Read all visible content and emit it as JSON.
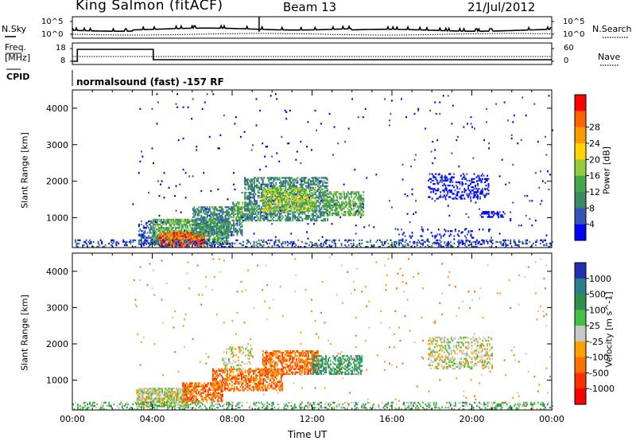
{
  "header": {
    "station": "King Salmon (fitACF)",
    "beam": "Beam 13",
    "date": "21/Jul/2012"
  },
  "noise_panel": {
    "left_label": "N.Sky",
    "right_label": "N.Search",
    "tick_top": "10^5",
    "tick_bottom": "10^0",
    "colors": {
      "line": "#000000"
    }
  },
  "freq_panel": {
    "left_label_1": "Freq.",
    "left_label_2": "[MHz]",
    "right_label": "Nave",
    "left_ticks": [
      "18",
      "8"
    ],
    "right_ticks": [
      "60",
      "0"
    ]
  },
  "cpid": {
    "label": "CPID",
    "text": "normalsound (fast) -157 RF"
  },
  "chart_data": [
    {
      "type": "heatmap",
      "name": "power",
      "ylabel": "Slant Range [km]",
      "xlabel": "",
      "ylim": [
        180,
        4500
      ],
      "yticks": [
        "1000",
        "2000",
        "3000",
        "4000"
      ],
      "xlim_hours": [
        0,
        24
      ],
      "colorbar": {
        "label": "Power [dB]",
        "ticks": [
          "4",
          "8",
          "12",
          "16",
          "20",
          "24",
          "28"
        ],
        "colors": [
          "#0000ff",
          "#3355bb",
          "#3d8a63",
          "#44a84a",
          "#96cc3a",
          "#ffd600",
          "#ff9b00",
          "#ff6000",
          "#ff0000"
        ]
      },
      "regions": [
        {
          "t0": 3.3,
          "t1": 4.2,
          "r0": 250,
          "r1": 900,
          "level": 1,
          "density": 0.4
        },
        {
          "t0": 4.0,
          "t1": 7.8,
          "r0": 250,
          "r1": 950,
          "level": 3,
          "density": 0.7
        },
        {
          "t0": 4.3,
          "t1": 6.6,
          "r0": 200,
          "r1": 600,
          "level": 7,
          "density": 0.75
        },
        {
          "t0": 6.0,
          "t1": 8.5,
          "r0": 500,
          "r1": 1300,
          "level": 2,
          "density": 0.55
        },
        {
          "t0": 8.0,
          "t1": 9.0,
          "r0": 900,
          "r1": 1400,
          "level": 3,
          "density": 0.5
        },
        {
          "t0": 8.6,
          "t1": 12.8,
          "r0": 900,
          "r1": 2100,
          "level": 2,
          "density": 0.55
        },
        {
          "t0": 9.5,
          "t1": 12.2,
          "r0": 1150,
          "r1": 1800,
          "level": 4,
          "density": 0.55
        },
        {
          "t0": 12.5,
          "t1": 14.6,
          "r0": 1050,
          "r1": 1700,
          "level": 3,
          "density": 0.55
        },
        {
          "t0": 17.8,
          "t1": 20.8,
          "r0": 1500,
          "r1": 2200,
          "level": 0,
          "density": 0.3
        },
        {
          "t0": 20.4,
          "t1": 21.6,
          "r0": 1000,
          "r1": 1150,
          "level": 0,
          "density": 0.55
        },
        {
          "t0": 16.2,
          "t1": 21.0,
          "r0": 250,
          "r1": 700,
          "level": 0,
          "density": 0.12
        },
        {
          "t0": 0.0,
          "t1": 24.0,
          "r0": 180,
          "r1": 400,
          "level": 1,
          "density": 0.3
        },
        {
          "t0": 3.0,
          "t1": 24.0,
          "r0": 180,
          "r1": 4400,
          "level": 0,
          "density": 0.01
        }
      ]
    },
    {
      "type": "heatmap",
      "name": "velocity",
      "ylabel": "Slant Range [km]",
      "xlabel": "Time UT",
      "ylim": [
        180,
        4500
      ],
      "yticks": [
        "1000",
        "2000",
        "3000",
        "4000"
      ],
      "xticks": [
        "00:00",
        "04:00",
        "08:00",
        "12:00",
        "16:00",
        "20:00",
        "00:00"
      ],
      "xlim_hours": [
        0,
        24
      ],
      "colorbar": {
        "label": "Velocity [m s^-1]",
        "ticks": [
          "1000",
          "500",
          "100",
          "25",
          "-25",
          "-100",
          "-500",
          "-1000"
        ],
        "colors": [
          "#2030b0",
          "#2a7f8f",
          "#2f8f4f",
          "#44c044",
          "#c8c8c8",
          "#ffa000",
          "#ff7000",
          "#ff3000",
          "#ff0000"
        ]
      },
      "regions": [
        {
          "t0": 3.2,
          "t1": 5.8,
          "r0": 250,
          "r1": 750,
          "level": 4,
          "density": 0.75
        },
        {
          "t0": 5.5,
          "t1": 7.5,
          "r0": 400,
          "r1": 900,
          "level": 6,
          "density": 0.6
        },
        {
          "t0": 7.0,
          "t1": 10.5,
          "r0": 700,
          "r1": 1300,
          "level": 6,
          "density": 0.55
        },
        {
          "t0": 7.5,
          "t1": 9.0,
          "r0": 1300,
          "r1": 1900,
          "level": 4,
          "density": 0.3
        },
        {
          "t0": 9.5,
          "t1": 12.3,
          "r0": 1150,
          "r1": 1800,
          "level": 6,
          "density": 0.55
        },
        {
          "t0": 12.0,
          "t1": 14.5,
          "r0": 1150,
          "r1": 1650,
          "level": 2,
          "density": 0.55
        },
        {
          "t0": 17.8,
          "t1": 21.0,
          "r0": 1300,
          "r1": 2200,
          "level": 4,
          "density": 0.35
        },
        {
          "t0": 0.0,
          "t1": 24.0,
          "r0": 180,
          "r1": 400,
          "level": 3,
          "density": 0.3
        },
        {
          "t0": 3.0,
          "t1": 24.0,
          "r0": 180,
          "r1": 4400,
          "level": 5,
          "density": 0.01
        }
      ]
    }
  ]
}
